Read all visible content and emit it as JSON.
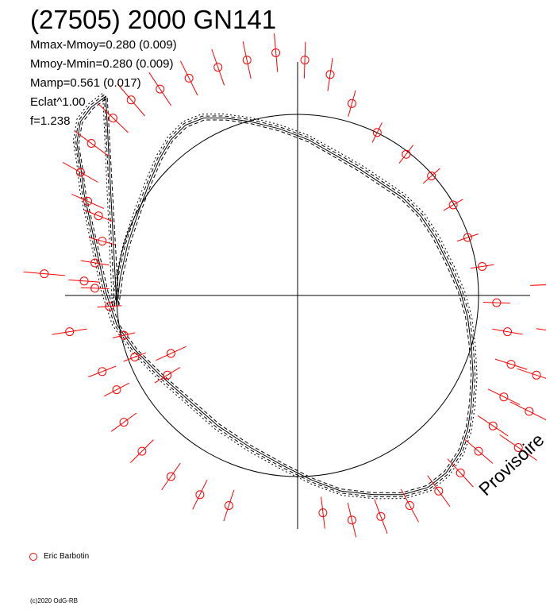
{
  "title": "(27505) 2000 GN141",
  "stats": [
    "Mmax-Mmoy=0.280 (0.009)",
    "Mmoy-Mmin=0.280 (0.009)",
    "Mamp=0.561 (0.017)",
    "Eclat^1.00",
    "f=1.238"
  ],
  "stamp": "Provisoire",
  "legend": {
    "label": "Eric Barbotin",
    "marker_color": "#ff0000"
  },
  "copyright": "(c)2020 OdG-RB",
  "colors": {
    "curve": "#000000",
    "points": "#ff0000",
    "axes": "#000000",
    "reference_circle": "#000000"
  },
  "chart_data": {
    "type": "scatter",
    "description_style": "polar lightcurve",
    "title": "(27505) 2000 GN141",
    "x": [
      -1.0,
      -0.98,
      -0.94,
      -0.88,
      -0.82,
      -0.76,
      -0.7,
      -0.62,
      -0.52,
      -0.4,
      -0.26,
      -0.1,
      0.06,
      0.2,
      0.34,
      0.46,
      0.58,
      0.68,
      0.76,
      0.84,
      0.9,
      0.94,
      0.96,
      0.97,
      0.96,
      0.94,
      0.9,
      0.82,
      0.72,
      0.58,
      0.42,
      0.24,
      0.08,
      -0.08,
      -0.26,
      -0.44,
      -0.6,
      -0.76,
      -0.9,
      -1.0,
      -1.06,
      -1.1,
      -1.14,
      -1.18,
      -1.2,
      -1.22,
      -1.2,
      -1.14,
      -1.06
    ],
    "y": [
      -0.06,
      0.1,
      0.28,
      0.46,
      0.62,
      0.76,
      0.86,
      0.94,
      0.98,
      0.98,
      0.96,
      0.92,
      0.86,
      0.78,
      0.7,
      0.62,
      0.54,
      0.44,
      0.32,
      0.16,
      0.02,
      -0.12,
      -0.28,
      -0.44,
      -0.6,
      -0.74,
      -0.86,
      -0.98,
      -1.06,
      -1.1,
      -1.1,
      -1.08,
      -1.02,
      -0.94,
      -0.84,
      -0.72,
      -0.58,
      -0.44,
      -0.3,
      -0.16,
      0.02,
      0.2,
      0.38,
      0.56,
      0.72,
      0.84,
      0.96,
      1.04,
      1.1
    ],
    "reference_circle_radius": 1.0,
    "xlim": [
      -1.55,
      1.55
    ],
    "ylim": [
      -1.55,
      1.55
    ],
    "grid": false,
    "series": [
      {
        "name": "Eric Barbotin",
        "points": [
          [
            -1.18,
            0.08
          ],
          [
            -1.12,
            0.18
          ],
          [
            -1.08,
            0.3
          ],
          [
            -1.1,
            0.44
          ],
          [
            -1.16,
            0.52
          ],
          [
            -1.2,
            0.68
          ],
          [
            -1.14,
            0.84
          ],
          [
            -1.02,
            0.98
          ],
          [
            -0.92,
            1.08
          ],
          [
            -0.76,
            1.14
          ],
          [
            -0.6,
            1.2
          ],
          [
            -0.44,
            1.26
          ],
          [
            -0.28,
            1.3
          ],
          [
            -0.12,
            1.34
          ],
          [
            0.04,
            1.3
          ],
          [
            0.18,
            1.22
          ],
          [
            0.3,
            1.06
          ],
          [
            0.44,
            0.9
          ],
          [
            0.6,
            0.78
          ],
          [
            0.74,
            0.66
          ],
          [
            0.86,
            0.5
          ],
          [
            0.94,
            0.32
          ],
          [
            1.02,
            0.16
          ],
          [
            1.1,
            -0.04
          ],
          [
            1.16,
            -0.2
          ],
          [
            1.18,
            -0.38
          ],
          [
            1.14,
            -0.56
          ],
          [
            1.08,
            -0.72
          ],
          [
            1.0,
            -0.86
          ],
          [
            0.9,
            -0.98
          ],
          [
            0.78,
            -1.08
          ],
          [
            0.62,
            -1.16
          ],
          [
            0.46,
            -1.22
          ],
          [
            0.3,
            -1.24
          ],
          [
            0.14,
            -1.2
          ],
          [
            -0.9,
            -0.34
          ],
          [
            -0.96,
            -0.22
          ],
          [
            -1.04,
            -0.06
          ],
          [
            -1.12,
            0.04
          ],
          [
            -1.4,
            0.12
          ],
          [
            -1.26,
            -0.2
          ],
          [
            -0.7,
            -0.32
          ],
          [
            -0.72,
            -0.44
          ],
          [
            -1.08,
            -0.42
          ],
          [
            -1.0,
            -0.52
          ],
          [
            -0.96,
            -0.7
          ],
          [
            -0.86,
            -0.86
          ],
          [
            -0.7,
            -1.0
          ],
          [
            -0.54,
            -1.1
          ],
          [
            -0.38,
            -1.16
          ],
          [
            1.4,
            0.06
          ],
          [
            1.44,
            -0.2
          ],
          [
            1.32,
            -0.44
          ],
          [
            1.28,
            -0.64
          ],
          [
            1.22,
            -0.84
          ]
        ]
      }
    ]
  }
}
